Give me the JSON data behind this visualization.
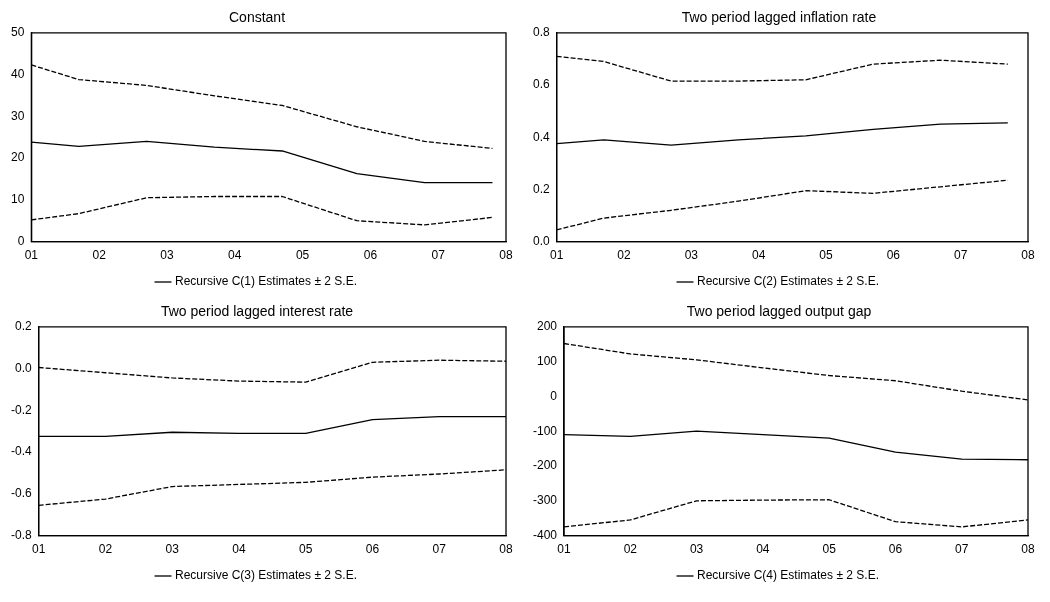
{
  "chart_data": [
    {
      "type": "line",
      "title": "Constant",
      "x": [
        2001,
        2001.7,
        2002.7,
        2003.7,
        2004.7,
        2005.8,
        2006.8,
        2007.8
      ],
      "xlim": [
        2001,
        2008
      ],
      "xticks": [
        {
          "value": 2001,
          "label": "01"
        },
        {
          "value": 2002,
          "label": "02"
        },
        {
          "value": 2003,
          "label": "03"
        },
        {
          "value": 2004,
          "label": "04"
        },
        {
          "value": 2005,
          "label": "05"
        },
        {
          "value": 2006,
          "label": "06"
        },
        {
          "value": 2007,
          "label": "07"
        },
        {
          "value": 2008,
          "label": "08"
        }
      ],
      "ylim": [
        0,
        50
      ],
      "yticks": [
        0,
        10,
        20,
        30,
        40,
        50
      ],
      "grid": false,
      "legend": "bottom",
      "series": [
        {
          "name": "Recursive C(1) Estimates ± 2 S.E.",
          "color": "#000000",
          "line_style": "solid",
          "values": [
            23.8,
            22.8,
            24,
            22.6,
            21.7,
            16.3,
            14.1,
            14.1
          ]
        },
        {
          "color": "#000000",
          "line_style": "dashed",
          "values": [
            42.3,
            38.8,
            37.4,
            34.9,
            32.6,
            27.5,
            24,
            22.3
          ]
        },
        {
          "color": "#000000",
          "line_style": "dashed",
          "values": [
            5.2,
            6.7,
            10.5,
            10.8,
            10.8,
            5,
            4,
            5.8
          ]
        }
      ]
    },
    {
      "type": "line",
      "title": "Two period lagged inflation rate",
      "x": [
        2001,
        2001.7,
        2002.7,
        2003.7,
        2004.7,
        2005.7,
        2006.7,
        2007.7
      ],
      "xlim": [
        2001,
        2008
      ],
      "xticks": [
        {
          "value": 2001,
          "label": "01"
        },
        {
          "value": 2002,
          "label": "02"
        },
        {
          "value": 2003,
          "label": "03"
        },
        {
          "value": 2004,
          "label": "04"
        },
        {
          "value": 2005,
          "label": "05"
        },
        {
          "value": 2006,
          "label": "06"
        },
        {
          "value": 2007,
          "label": "07"
        },
        {
          "value": 2008,
          "label": "08"
        }
      ],
      "ylim": [
        0,
        0.8
      ],
      "yticks": [
        {
          "value": 0,
          "label": "0.0"
        },
        0.2,
        0.4,
        0.6,
        0.8
      ],
      "grid": false,
      "legend": "bottom",
      "series": [
        {
          "name": "Recursive C(2) Estimates ± 2 S.E.",
          "color": "#000000",
          "line_style": "solid",
          "values": [
            0.375,
            0.39,
            0.37,
            0.39,
            0.405,
            0.43,
            0.45,
            0.455
          ]
        },
        {
          "color": "#000000",
          "line_style": "dashed",
          "values": [
            0.71,
            0.69,
            0.615,
            0.615,
            0.62,
            0.68,
            0.695,
            0.68
          ]
        },
        {
          "color": "#000000",
          "line_style": "dashed",
          "values": [
            0.045,
            0.09,
            0.12,
            0.155,
            0.195,
            0.185,
            0.21,
            0.235
          ]
        }
      ]
    },
    {
      "type": "line",
      "title": "Two period lagged interest rate",
      "x": [
        2001,
        2002,
        2003,
        2004,
        2005,
        2006,
        2007,
        2008
      ],
      "xlim": [
        2001,
        2008
      ],
      "xticks": [
        {
          "value": 2001,
          "label": "01"
        },
        {
          "value": 2002,
          "label": "02"
        },
        {
          "value": 2003,
          "label": "03"
        },
        {
          "value": 2004,
          "label": "04"
        },
        {
          "value": 2005,
          "label": "05"
        },
        {
          "value": 2006,
          "label": "06"
        },
        {
          "value": 2007,
          "label": "07"
        },
        {
          "value": 2008,
          "label": "08"
        }
      ],
      "ylim": [
        -0.8,
        0.2
      ],
      "yticks": [
        -0.8,
        -0.6,
        -0.4,
        -0.2,
        {
          "value": 0,
          "label": "0.0"
        },
        0.2
      ],
      "grid": false,
      "legend": "bottom",
      "series": [
        {
          "name": "Recursive C(3) Estimates ± 2 S.E.",
          "color": "#000000",
          "line_style": "solid",
          "values": [
            -0.325,
            -0.325,
            -0.305,
            -0.31,
            -0.31,
            -0.245,
            -0.23,
            -0.23
          ]
        },
        {
          "color": "#000000",
          "line_style": "dashed",
          "values": [
            0.005,
            -0.02,
            -0.045,
            -0.06,
            -0.065,
            0.03,
            0.04,
            0.035
          ]
        },
        {
          "color": "#000000",
          "line_style": "dashed",
          "values": [
            -0.655,
            -0.625,
            -0.565,
            -0.555,
            -0.545,
            -0.52,
            -0.505,
            -0.485
          ]
        }
      ]
    },
    {
      "type": "line",
      "title": "Two period lagged output gap",
      "x": [
        2001,
        2002,
        2003,
        2004,
        2005,
        2006,
        2007,
        2008
      ],
      "xlim": [
        2001,
        2008
      ],
      "xticks": [
        {
          "value": 2001,
          "label": "01"
        },
        {
          "value": 2002,
          "label": "02"
        },
        {
          "value": 2003,
          "label": "03"
        },
        {
          "value": 2004,
          "label": "04"
        },
        {
          "value": 2005,
          "label": "05"
        },
        {
          "value": 2006,
          "label": "06"
        },
        {
          "value": 2007,
          "label": "07"
        },
        {
          "value": 2008,
          "label": "08"
        }
      ],
      "ylim": [
        -400,
        200
      ],
      "yticks": [
        -400,
        -300,
        -200,
        -100,
        0,
        100,
        200
      ],
      "grid": false,
      "legend": "bottom",
      "series": [
        {
          "name": "Recursive C(4) Estimates ± 2 S.E.",
          "color": "#000000",
          "line_style": "solid",
          "values": [
            -110,
            -115,
            -100,
            -110,
            -120,
            -160,
            -180,
            -182
          ]
        },
        {
          "color": "#000000",
          "line_style": "dashed",
          "values": [
            152,
            122,
            105,
            82,
            60,
            45,
            15,
            -10
          ]
        },
        {
          "color": "#000000",
          "line_style": "dashed",
          "values": [
            -375,
            -355,
            -300,
            -298,
            -297,
            -360,
            -375,
            -355
          ]
        }
      ]
    }
  ]
}
